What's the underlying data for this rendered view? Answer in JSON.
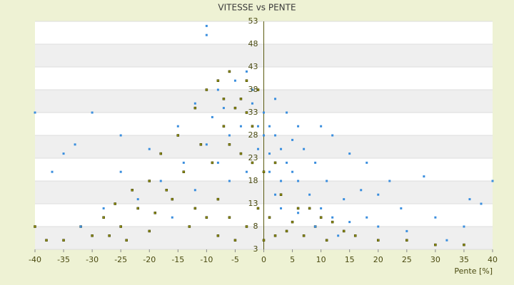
{
  "chart_data": {
    "type": "scatter",
    "title": "VITESSE vs PENTE",
    "x_label": "Pente [%]",
    "xlim": [
      -40,
      40
    ],
    "xticks": [
      -40,
      -35,
      -30,
      -25,
      -20,
      -15,
      -10,
      -5,
      0,
      5,
      10,
      15,
      20,
      25,
      30,
      35,
      40
    ],
    "ylim": [
      3,
      53
    ],
    "yticks": [
      3,
      8,
      13,
      18,
      23,
      28,
      33,
      38,
      43,
      48,
      53
    ],
    "grid": true,
    "series": [
      {
        "color": "#8c8c00",
        "x": [
          -10,
          -8,
          -6,
          -4,
          -3,
          -2,
          -5,
          -7,
          -12,
          -15,
          -18,
          -20,
          -22,
          -25,
          -30,
          -35,
          -38,
          -40,
          -28,
          -16,
          -13,
          -10,
          -8,
          -5,
          -3,
          -1,
          0,
          0,
          1,
          2,
          4,
          5,
          7,
          9,
          11,
          14,
          16,
          20,
          25,
          30,
          35,
          -9,
          -11,
          -6,
          -4,
          -2,
          -14,
          -17,
          -19,
          -23,
          -26,
          -32,
          -1,
          -3,
          -7,
          2,
          3,
          6,
          8,
          10,
          12,
          -8,
          -6,
          -12,
          -20,
          -24,
          -27
        ],
        "values": [
          38,
          40,
          42,
          36,
          33,
          30,
          34,
          30,
          34,
          28,
          24,
          18,
          12,
          8,
          6,
          5,
          5,
          8,
          10,
          14,
          8,
          10,
          6,
          5,
          8,
          12,
          5,
          20,
          10,
          6,
          7,
          9,
          6,
          8,
          5,
          7,
          6,
          5,
          5,
          4,
          4,
          22,
          26,
          26,
          24,
          22,
          20,
          16,
          11,
          16,
          13,
          8,
          38,
          40,
          36,
          22,
          15,
          12,
          12,
          10,
          9,
          14,
          10,
          12,
          7,
          5,
          6
        ]
      },
      {
        "color": "#3a8ede",
        "x": [
          -10,
          -10,
          -40,
          -30,
          -35,
          -33,
          -25,
          -20,
          -15,
          -12,
          -8,
          -5,
          -3,
          -2,
          0,
          1,
          2,
          3,
          4,
          5,
          6,
          8,
          10,
          12,
          15,
          18,
          20,
          25,
          28,
          30,
          35,
          38,
          40,
          -6,
          -4,
          -1,
          1,
          2,
          3,
          5,
          7,
          9,
          10,
          12,
          15,
          18,
          20,
          22,
          -18,
          -22,
          -28,
          -32,
          -14,
          -10,
          -8,
          -6,
          -3,
          0,
          4,
          6,
          11,
          14,
          17,
          24,
          32,
          36,
          -37,
          -25,
          -16,
          -12,
          -9,
          -7,
          -2,
          2,
          -1,
          1,
          3,
          6,
          9,
          13
        ],
        "values": [
          52,
          50,
          33,
          33,
          24,
          26,
          28,
          25,
          30,
          35,
          38,
          40,
          42,
          35,
          33,
          30,
          28,
          25,
          22,
          20,
          18,
          15,
          12,
          10,
          9,
          10,
          8,
          7,
          19,
          10,
          8,
          13,
          18,
          28,
          30,
          25,
          20,
          15,
          12,
          27,
          25,
          22,
          30,
          28,
          24,
          22,
          15,
          18,
          18,
          14,
          12,
          8,
          22,
          26,
          22,
          18,
          20,
          28,
          33,
          30,
          18,
          14,
          16,
          12,
          5,
          14,
          20,
          20,
          10,
          16,
          32,
          34,
          38,
          36,
          30,
          24,
          18,
          11,
          8,
          6
        ]
      }
    ]
  }
}
